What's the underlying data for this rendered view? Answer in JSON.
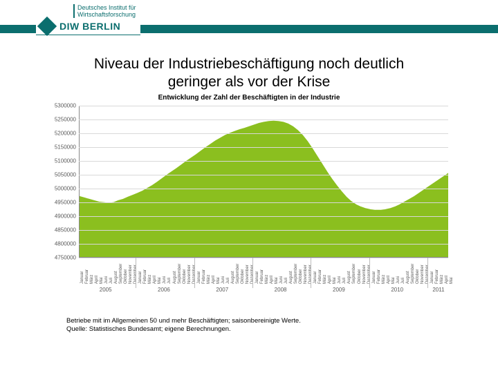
{
  "branding": {
    "institute_line1": "Deutsches Institut für",
    "institute_line2": "Wirtschaftsforschung",
    "logo_text": "DIW BERLIN",
    "brand_color": "#0b6e6e"
  },
  "title_line1": "Niveau der Industriebeschäftigung noch deutlich",
  "title_line2": "geringer als vor der Krise",
  "chart": {
    "type": "area",
    "title": "Entwicklung der Zahl der Beschäftigten in der Industrie",
    "ylim": [
      4750000,
      5300000
    ],
    "ytick_step": 50000,
    "yticks": [
      4750000,
      4800000,
      4850000,
      4900000,
      4950000,
      5000000,
      5050000,
      5100000,
      5150000,
      5200000,
      5250000,
      5300000
    ],
    "fill_color": "#8bbf1f",
    "line_color": "#8bbf1f",
    "grid_color": "#d8d8d8",
    "axis_color": "#888888",
    "background_color": "#ffffff",
    "ylabel_color": "#5a5a5a",
    "ylabel_fontsize": 8,
    "xlabel_fontsize": 6,
    "title_fontsize": 10,
    "months": [
      "Januar",
      "Februar",
      "März",
      "April",
      "Mai",
      "Juni",
      "Juli",
      "August",
      "September",
      "Oktober",
      "November",
      "Dezember"
    ],
    "years": [
      2005,
      2006,
      2007,
      2008,
      2009,
      2010,
      2011
    ],
    "n_points_2011": 5,
    "values": [
      4970000,
      4965000,
      4960000,
      4955000,
      4950000,
      4948000,
      4946000,
      4948000,
      4955000,
      4960000,
      4968000,
      4975000,
      4982000,
      4990000,
      5000000,
      5010000,
      5022000,
      5035000,
      5048000,
      5060000,
      5072000,
      5085000,
      5098000,
      5110000,
      5122000,
      5135000,
      5148000,
      5160000,
      5172000,
      5182000,
      5192000,
      5200000,
      5207000,
      5213000,
      5218000,
      5224000,
      5230000,
      5236000,
      5240000,
      5243000,
      5244000,
      5243000,
      5240000,
      5234000,
      5224000,
      5210000,
      5192000,
      5170000,
      5144000,
      5116000,
      5088000,
      5060000,
      5034000,
      5010000,
      4988000,
      4968000,
      4952000,
      4940000,
      4932000,
      4926000,
      4922000,
      4920000,
      4920000,
      4922000,
      4926000,
      4932000,
      4940000,
      4950000,
      4960000,
      4970000,
      4982000,
      4994000,
      5006000,
      5018000,
      5030000,
      5042000,
      5054000
    ]
  },
  "footnote_line1": "Betriebe mit im Allgemeinen 50 und mehr Beschäftigten; saisonbereinigte Werte.",
  "footnote_line2": "Quelle: Statistisches Bundesamt; eigene Berechnungen."
}
